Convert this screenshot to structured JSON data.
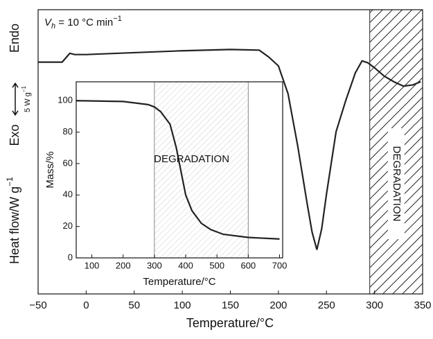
{
  "chart_data": [
    {
      "type": "line",
      "annotation": {
        "symbol": "V",
        "subscript": "h",
        "text": " = 10 °C min",
        "superscript": "−1"
      },
      "x_label": "Temperature/°C",
      "y_label": {
        "text": "Heat flow/W g",
        "superscript": "−1"
      },
      "endo_label": "Endo",
      "exo_label": "Exo",
      "scale_bar": {
        "value": 5,
        "label": "5 W g",
        "superscript": "−1"
      },
      "region": {
        "label": "DEGRADATION",
        "range": [
          295,
          350
        ]
      },
      "color": "#222222",
      "x": [
        -50,
        -25,
        -17,
        -12,
        0,
        50,
        100,
        150,
        180,
        190,
        200,
        210,
        220,
        230,
        235,
        240,
        245,
        250,
        260,
        270,
        280,
        287,
        293,
        300,
        310,
        320,
        330,
        340,
        348
      ],
      "values": [
        36.7,
        36.7,
        38.1,
        37.9,
        37.9,
        38.2,
        38.5,
        38.7,
        38.6,
        37.5,
        36.1,
        31.7,
        23.5,
        14.2,
        9.8,
        7.0,
        10.3,
        15.8,
        25.7,
        30.6,
        35.0,
        36.9,
        36.6,
        35.8,
        34.5,
        33.6,
        32.9,
        33.1,
        33.6
      ],
      "xlim": [
        -50,
        350
      ],
      "ylim": [
        0,
        45
      ],
      "xticks": [
        {
          "value": -50,
          "label": "−50"
        },
        0,
        50,
        100,
        150,
        200,
        250,
        300,
        350
      ]
    },
    {
      "type": "line",
      "x_label": "Temperature/°C",
      "y_label": "Mass/%",
      "region": {
        "label": "DEGRADATION",
        "range": [
          300,
          600
        ]
      },
      "color": "#222222",
      "x": [
        50,
        200,
        280,
        300,
        320,
        350,
        370,
        390,
        400,
        420,
        450,
        480,
        520,
        600,
        700
      ],
      "values": [
        100,
        99.5,
        97.5,
        96,
        93,
        85,
        70,
        50,
        40,
        30,
        22,
        18,
        15,
        13,
        12
      ],
      "xlim": [
        50,
        710
      ],
      "ylim": [
        0,
        112
      ],
      "xticks": [
        100,
        200,
        300,
        400,
        500,
        600,
        700
      ],
      "yticks": [
        0,
        20,
        40,
        60,
        80,
        100
      ]
    }
  ]
}
